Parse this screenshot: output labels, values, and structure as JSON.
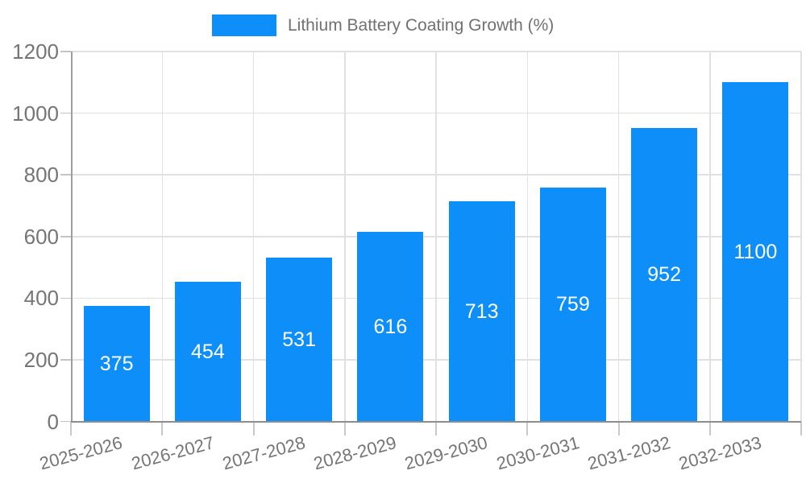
{
  "chart_data": {
    "type": "bar",
    "title": "Lithium Battery Coating Growth (%)",
    "categories": [
      "2025-2026",
      "2026-2027",
      "2027-2028",
      "2028-2029",
      "2029-2030",
      "2030-2031",
      "2031-2032",
      "2032-2033"
    ],
    "values": [
      375,
      454,
      531,
      616,
      713,
      759,
      952,
      1100
    ],
    "xlabel": "",
    "ylabel": "",
    "ylim": [
      0,
      1200
    ],
    "yticks": [
      0,
      200,
      400,
      600,
      800,
      1000,
      1200
    ],
    "grid": true,
    "legend_position": "top-center",
    "colors": {
      "bar": "#0d8ef8",
      "bar_label": "#ffffff",
      "axis_text": "#757575",
      "legend_text": "#717171",
      "gridline": "#e1e1e1",
      "tick": "#c9c9c9",
      "axis_line": "#8d8d8d",
      "background": "#ffffff"
    }
  }
}
